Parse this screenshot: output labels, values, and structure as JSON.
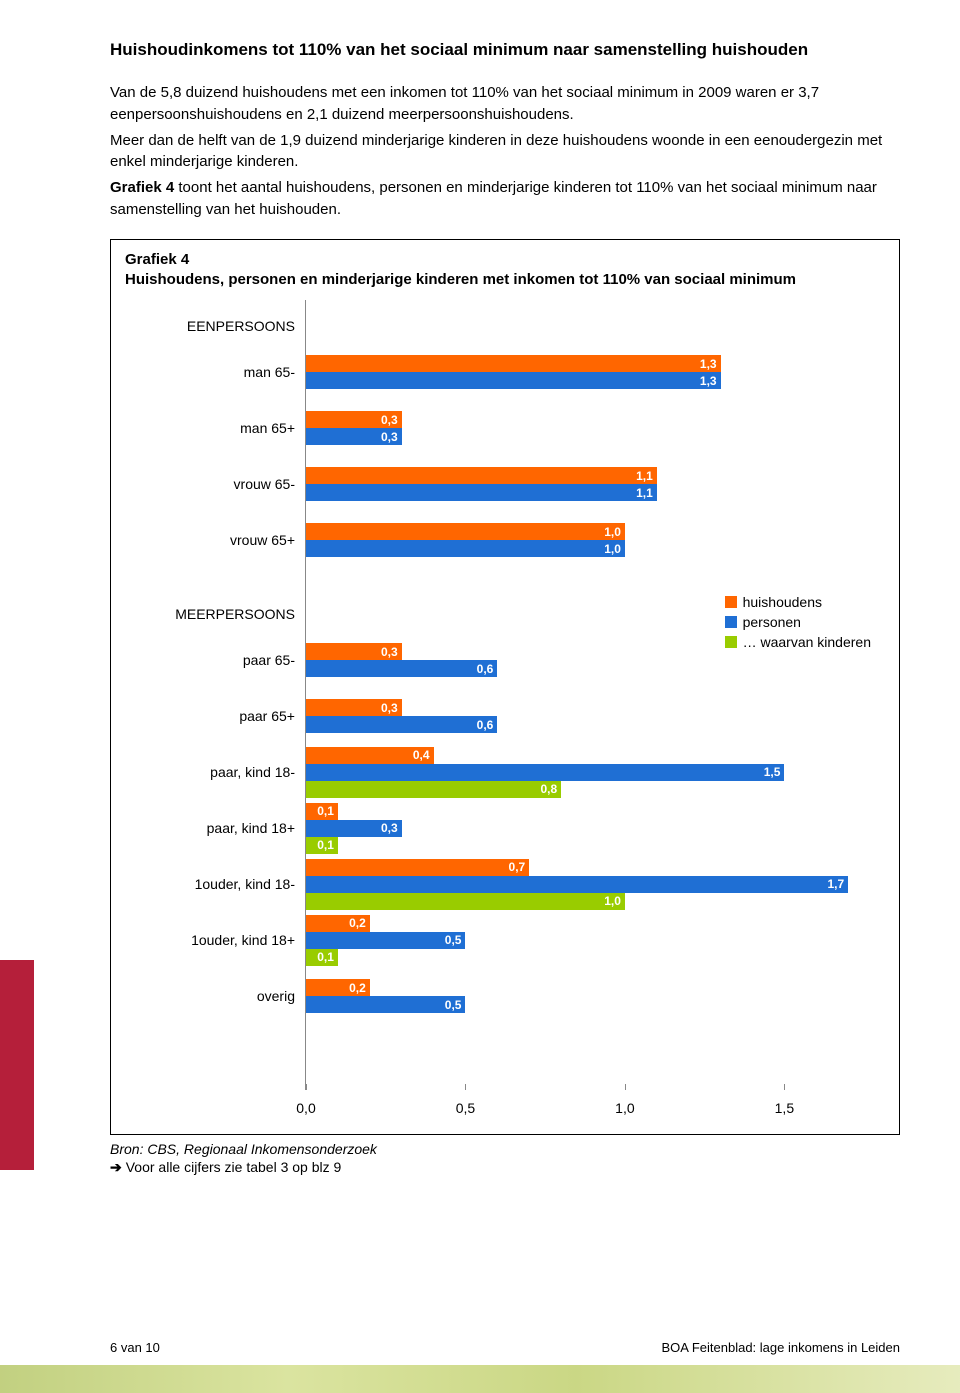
{
  "title": "Huishoudinkomens tot 110% van het sociaal minimum naar samenstelling huishouden",
  "paragraphs": [
    "Van de 5,8 duizend huishoudens met een inkomen tot 110% van het sociaal minimum in 2009 waren er 3,7 eenpersoonshuishoudens en 2,1 duizend meerpersoonshuishoudens.",
    "Meer dan de helft van de 1,9 duizend minderjarige kinderen in deze huishoudens woonde in een eenoudergezin met enkel minderjarige kinderen."
  ],
  "para_bold_lead": "Grafiek 4",
  "para_bold_rest": " toont het aantal huishoudens, personen en minderjarige kinderen tot 110% van het sociaal minimum naar samenstelling van het huishouden.",
  "chart": {
    "title_line1": "Grafiek 4",
    "title_line2": "Huishoudens, personen en minderjarige kinderen met inkomen tot 110% van sociaal minimum",
    "colors": {
      "huishoudens": "#ff6600",
      "personen": "#1f6fd4",
      "kinderen": "#99cc00",
      "axis": "#888888",
      "text": "#000000"
    },
    "legend": {
      "huishoudens": "huishoudens",
      "personen": "personen",
      "kinderen": "… waarvan kinderen"
    },
    "x": {
      "min": 0.0,
      "max": 1.85,
      "ticks": [
        0.0,
        0.5,
        1.0,
        1.5
      ],
      "tick_labels": [
        "0,0",
        "0,5",
        "1,0",
        "1,5"
      ]
    },
    "section_labels": {
      "een": "EENPERSOONS",
      "meer": "MEERPERSOONS"
    },
    "rows": [
      {
        "type": "section",
        "key": "een"
      },
      {
        "type": "data",
        "label": "man 65-",
        "h": 1.3,
        "p": 1.3
      },
      {
        "type": "data",
        "label": "man 65+",
        "h": 0.3,
        "p": 0.3
      },
      {
        "type": "data",
        "label": "vrouw 65-",
        "h": 1.1,
        "p": 1.1
      },
      {
        "type": "data",
        "label": "vrouw 65+",
        "h": 1.0,
        "p": 1.0
      },
      {
        "type": "gap"
      },
      {
        "type": "section",
        "key": "meer"
      },
      {
        "type": "data",
        "label": "paar 65-",
        "h": 0.3,
        "p": 0.6
      },
      {
        "type": "data",
        "label": "paar 65+",
        "h": 0.3,
        "p": 0.6
      },
      {
        "type": "data",
        "label": "paar, kind 18-",
        "h": 0.4,
        "p": 1.5,
        "k": 0.8
      },
      {
        "type": "data",
        "label": "paar, kind 18+",
        "h": 0.1,
        "p": 0.3,
        "k": 0.1
      },
      {
        "type": "data",
        "label": "1ouder, kind 18-",
        "h": 0.7,
        "p": 1.7,
        "k": 1.0
      },
      {
        "type": "data",
        "label": "1ouder, kind 18+",
        "h": 0.2,
        "p": 0.5,
        "k": 0.1
      },
      {
        "type": "data",
        "label": "overig",
        "h": 0.2,
        "p": 0.5
      }
    ]
  },
  "source": "Bron: CBS, Regionaal Inkomensonderzoek",
  "link_arrow": "➔",
  "link_text": "Voor alle cijfers zie tabel 3 op blz 9",
  "footer_left": "6 van 10",
  "footer_right": "BOA Feitenblad: lage inkomens in Leiden"
}
